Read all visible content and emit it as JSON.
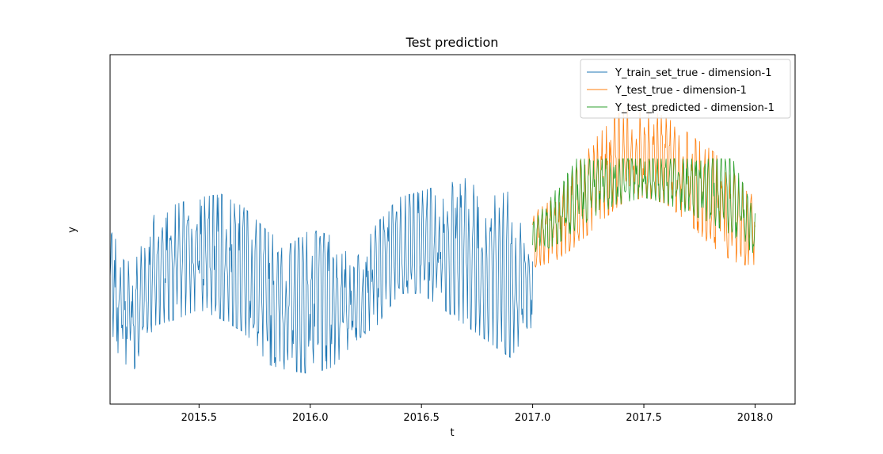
{
  "chart_data": {
    "type": "line",
    "title": "Test prediction",
    "xlabel": "t",
    "ylabel": "y",
    "xlim": [
      2015.1,
      2018.18
    ],
    "ylim": [
      0,
      1
    ],
    "xticks": [
      "2015.5",
      "2016.0",
      "2016.5",
      "2017.0",
      "2017.5",
      "2018.0"
    ],
    "xtick_values": [
      2015.5,
      2016.0,
      2016.5,
      2017.0,
      2017.5,
      2018.0
    ],
    "yticks": [],
    "grid": false,
    "legend_position": "top-right",
    "series": [
      {
        "name": "Y_train_set_true - dimension-1",
        "color": "#1f77b4",
        "x_start": 2015.1,
        "x_end": 2017.0,
        "envelope_x": [
          2015.1,
          2015.2,
          2015.3,
          2015.4,
          2015.5,
          2015.6,
          2015.7,
          2015.8,
          2015.9,
          2016.0,
          2016.1,
          2016.2,
          2016.3,
          2016.4,
          2016.5,
          2016.6,
          2016.7,
          2016.8,
          2016.9,
          2017.0
        ],
        "envelope_high": [
          0.5,
          0.38,
          0.55,
          0.58,
          0.6,
          0.61,
          0.57,
          0.5,
          0.45,
          0.5,
          0.48,
          0.4,
          0.52,
          0.6,
          0.62,
          0.64,
          0.66,
          0.6,
          0.62,
          0.4
        ],
        "envelope_low": [
          0.15,
          0.05,
          0.2,
          0.22,
          0.25,
          0.22,
          0.18,
          0.08,
          0.06,
          0.05,
          0.07,
          0.15,
          0.2,
          0.3,
          0.3,
          0.25,
          0.2,
          0.15,
          0.1,
          0.2
        ]
      },
      {
        "name": "Y_test_true - dimension-1",
        "color": "#ff7f0e",
        "x_start": 2017.0,
        "x_end": 2018.0,
        "envelope_x": [
          2017.0,
          2017.1,
          2017.2,
          2017.3,
          2017.4,
          2017.5,
          2017.6,
          2017.7,
          2017.8,
          2017.9,
          2018.0
        ],
        "envelope_high": [
          0.55,
          0.6,
          0.7,
          0.8,
          0.87,
          0.88,
          0.85,
          0.8,
          0.75,
          0.68,
          0.6
        ],
        "envelope_low": [
          0.38,
          0.4,
          0.45,
          0.52,
          0.58,
          0.6,
          0.58,
          0.52,
          0.45,
          0.4,
          0.38
        ]
      },
      {
        "name": "Y_test_predicted - dimension-1",
        "color": "#2ca02c",
        "x_start": 2017.0,
        "x_end": 2018.0,
        "envelope_x": [
          2017.0,
          2017.1,
          2017.2,
          2017.3,
          2017.4,
          2017.5,
          2017.6,
          2017.7,
          2017.8,
          2017.9,
          2018.0
        ],
        "envelope_high": [
          0.52,
          0.62,
          0.72,
          0.72,
          0.72,
          0.72,
          0.72,
          0.72,
          0.72,
          0.72,
          0.55
        ],
        "envelope_low": [
          0.42,
          0.45,
          0.5,
          0.55,
          0.58,
          0.6,
          0.58,
          0.55,
          0.52,
          0.48,
          0.42
        ]
      }
    ]
  }
}
